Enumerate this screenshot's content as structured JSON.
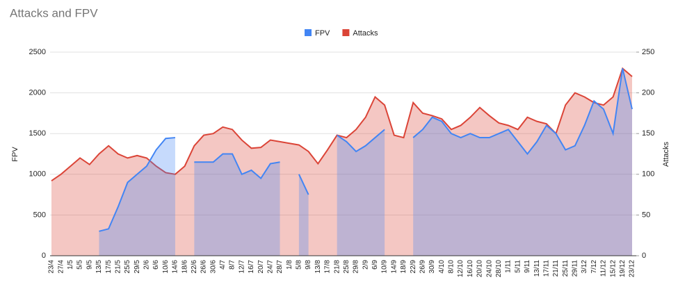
{
  "chart_data": {
    "type": "area",
    "title": "Attacks and FPV",
    "categories": [
      "23/4",
      "27/4",
      "1/5",
      "5/5",
      "9/5",
      "13/5",
      "17/5",
      "21/5",
      "25/5",
      "29/5",
      "2/6",
      "6/6",
      "10/6",
      "14/6",
      "18/6",
      "22/6",
      "26/6",
      "30/6",
      "4/7",
      "8/7",
      "12/7",
      "16/7",
      "20/7",
      "24/7",
      "28/7",
      "1/8",
      "5/8",
      "9/8",
      "13/8",
      "17/8",
      "21/8",
      "25/8",
      "29/8",
      "2/9",
      "6/9",
      "10/9",
      "14/9",
      "18/9",
      "22/9",
      "26/9",
      "30/9",
      "4/10",
      "8/10",
      "12/10",
      "16/10",
      "20/10",
      "24/10",
      "28/10",
      "1/11",
      "5/11",
      "9/11",
      "13/11",
      "17/11",
      "21/11",
      "25/11",
      "29/11",
      "3/12",
      "7/12",
      "11/12",
      "15/12",
      "19/12",
      "23/12"
    ],
    "series": [
      {
        "name": "FPV",
        "color": "#4285f4",
        "values": [
          null,
          null,
          null,
          null,
          null,
          300,
          330,
          600,
          900,
          1000,
          1100,
          1300,
          1440,
          1450,
          null,
          1150,
          1150,
          1150,
          1250,
          1250,
          1000,
          1050,
          950,
          1130,
          1150,
          null,
          1000,
          750,
          null,
          null,
          1480,
          1400,
          1280,
          1350,
          1450,
          1550,
          null,
          null,
          1450,
          1550,
          1700,
          1650,
          1500,
          1450,
          1500,
          1450,
          1450,
          1500,
          1550,
          1400,
          1250,
          1400,
          1600,
          1500,
          1300,
          1350,
          1600,
          1900,
          1800,
          1500,
          2300,
          1800
        ]
      },
      {
        "name": "Attacks",
        "color": "#db4437",
        "axis": "y2",
        "values": [
          92,
          100,
          110,
          120,
          112,
          125,
          135,
          125,
          120,
          123,
          120,
          110,
          102,
          100,
          110,
          135,
          148,
          150,
          158,
          155,
          142,
          132,
          133,
          142,
          140,
          138,
          136,
          128,
          113,
          130,
          148,
          145,
          155,
          170,
          195,
          185,
          148,
          145,
          188,
          175,
          172,
          168,
          155,
          160,
          170,
          182,
          172,
          163,
          160,
          155,
          170,
          165,
          162,
          150,
          185,
          200,
          195,
          188,
          185,
          195,
          230,
          220
        ]
      }
    ],
    "ylabel": "FPV",
    "y2label": "Attacks",
    "ylim": [
      0,
      2500
    ],
    "yticks": [
      0,
      500,
      1000,
      1500,
      2000,
      2500
    ],
    "y2lim": [
      0,
      250
    ],
    "y2ticks": [
      0,
      50,
      100,
      150,
      200,
      250
    ],
    "legend": "top"
  }
}
